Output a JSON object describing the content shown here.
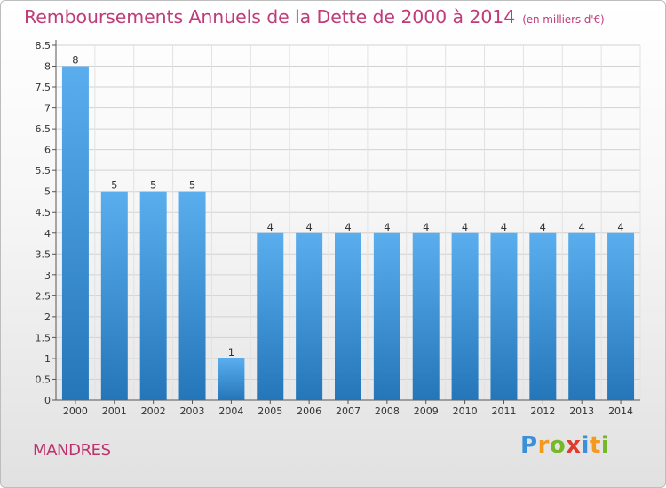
{
  "title": "Remboursements Annuels de la Dette de 2000 à 2014",
  "unit": "(en milliers d'€)",
  "city": "MANDRES",
  "logo": "Proxiti",
  "colors": {
    "bar_top": "#5aaeee",
    "bar_bottom": "#2476b8",
    "title": "#bf3c7a"
  },
  "chart_data": {
    "type": "bar",
    "title": "Remboursements Annuels de la Dette de 2000 à 2014",
    "subtitle": "(en milliers d'€)",
    "categories": [
      "2000",
      "2001",
      "2002",
      "2003",
      "2004",
      "2005",
      "2006",
      "2007",
      "2008",
      "2009",
      "2010",
      "2011",
      "2012",
      "2013",
      "2014"
    ],
    "values": [
      8,
      5,
      5,
      5,
      1,
      4,
      4,
      4,
      4,
      4,
      4,
      4,
      4,
      4,
      4
    ],
    "ylim": [
      0,
      8.5
    ],
    "yticks": [
      0,
      0.5,
      1,
      1.5,
      2,
      2.5,
      3,
      3.5,
      4,
      4.5,
      5,
      5.5,
      6,
      6.5,
      7,
      7.5,
      8,
      8.5
    ],
    "xlabel": "",
    "ylabel": "",
    "grid": true
  }
}
